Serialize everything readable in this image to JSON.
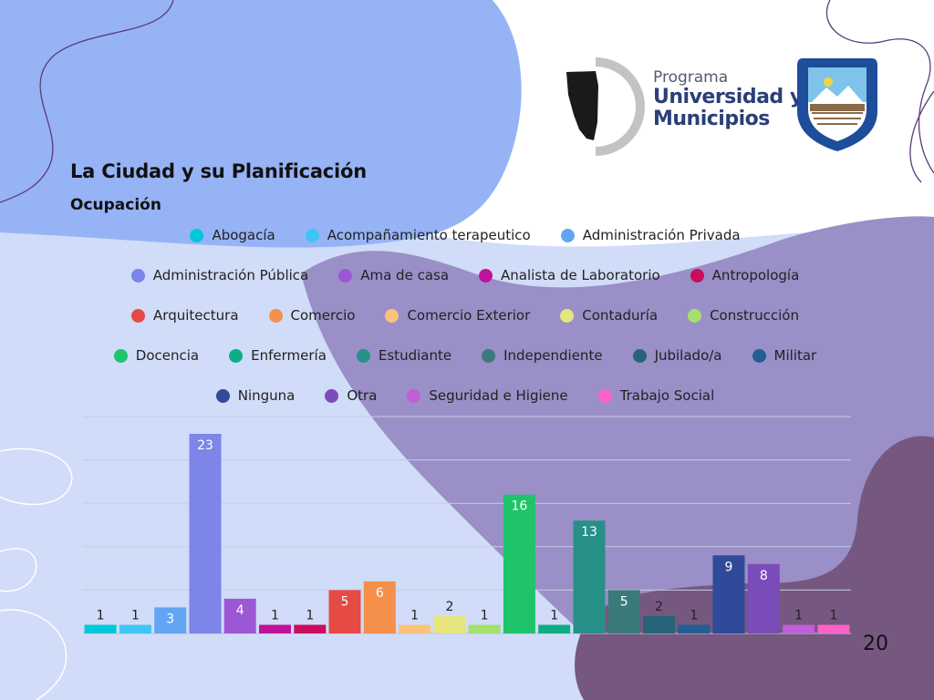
{
  "page": {
    "title": "La Ciudad y su Planificación",
    "subtitle": "Ocupación",
    "page_number": "20"
  },
  "logo": {
    "line1": "Programa",
    "line2": "Universidad y",
    "line3": "Municipios"
  },
  "colors": {
    "background": "#d0dcf8",
    "top_blob": "#96b3f5",
    "purple_blob": "#9a8fc7",
    "dark_blob": "#765780"
  },
  "chart_data": {
    "type": "bar",
    "categories": [
      "Abogacía",
      "Acompañamiento terapeutico",
      "Administración Privada",
      "Administración Pública",
      "Ama de casa",
      "Analista de Laboratorio",
      "Antropología",
      "Arquitectura",
      "Comercio",
      "Comercio Exterior",
      "Contaduría",
      "Construcción",
      "Docencia",
      "Enfermería",
      "Estudiante",
      "Independiente",
      "Jubilado/a",
      "Militar",
      "Ninguna",
      "Otra",
      "Seguridad e Higiene",
      "Trabajo Social"
    ],
    "values": [
      1,
      1,
      3,
      23,
      4,
      1,
      1,
      5,
      6,
      1,
      2,
      1,
      16,
      1,
      13,
      5,
      2,
      1,
      9,
      8,
      1,
      1
    ],
    "colors": [
      "#00c8d8",
      "#3fc5f5",
      "#63a5f3",
      "#7d85e8",
      "#9d57d5",
      "#c0129a",
      "#c90c5c",
      "#e54a45",
      "#f4904a",
      "#fbc37a",
      "#e6e57e",
      "#a4e06c",
      "#1fc46a",
      "#10ad85",
      "#279087",
      "#3a7a7b",
      "#276479",
      "#255e93",
      "#2f4a98",
      "#7a4cba",
      "#c05fd6",
      "#fb63c9"
    ],
    "legend_rows": [
      [
        "Abogacía",
        "Acompañamiento terapeutico",
        "Administración Privada"
      ],
      [
        "Administración Pública",
        "Ama de casa",
        "Analista de Laboratorio",
        "Antropología"
      ],
      [
        "Arquitectura",
        "Comercio",
        "Comercio Exterior",
        "Contaduría",
        "Construcción"
      ],
      [
        "Docencia",
        "Enfermería",
        "Estudiante",
        "Independiente",
        "Jubilado/a",
        "Militar"
      ],
      [
        "Ninguna",
        "Otra",
        "Seguridad e Higiene",
        "Trabajo Social"
      ]
    ],
    "ylim": [
      0,
      25
    ],
    "grid": true,
    "legend_position": "top"
  }
}
